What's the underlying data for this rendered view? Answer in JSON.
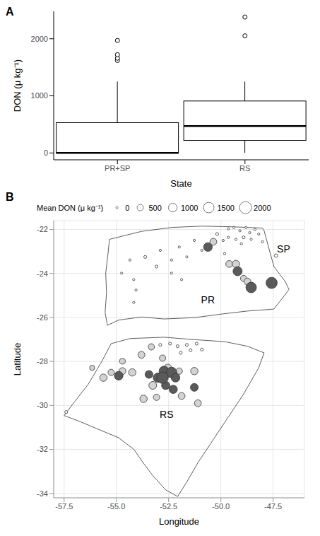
{
  "chart_data": [
    {
      "type": "box",
      "title": "A",
      "x_label": "State",
      "y_label": "DON (μ kg⁻¹)",
      "categories": [
        "PR+SP",
        "RS"
      ],
      "whisker_low": [
        0,
        0
      ],
      "q1": [
        0,
        220
      ],
      "median": [
        0,
        470
      ],
      "q3": [
        530,
        910
      ],
      "whisker_high": [
        1250,
        1250
      ],
      "outliers": [
        [
          1620,
          1660,
          1720,
          1970
        ],
        [
          2050,
          2380
        ]
      ],
      "ylim": [
        -120,
        2480
      ],
      "yticks": [
        0,
        1000,
        2000
      ]
    },
    {
      "type": "scatter",
      "title": "B",
      "x_label": "Longitude",
      "y_label": "Latitude",
      "x": [
        -49.64,
        -49.38,
        -49.09,
        -48.8,
        -48.62,
        -48.37,
        -48.19,
        -48.91,
        -49.28,
        -48.55,
        -48.01,
        -49.64,
        -50.18,
        -49.89,
        -49.02,
        -51.27,
        -51.99,
        -52.9,
        -53.62,
        -54.35,
        -54.75,
        -54.17,
        -53.08,
        -52.36,
        -51.63,
        -50.91,
        -50.62,
        -50.36,
        -49.82,
        -49.6,
        -49.28,
        -49.2,
        -48.91,
        -48.73,
        -48.55,
        -47.57,
        -47.36,
        -54.06,
        -54.17,
        -52.36,
        -51.88,
        -57.4,
        -52.9,
        -52.43,
        -52.07,
        -51.63,
        -51.16,
        -51.45,
        -51.92,
        -50.91,
        -53.8,
        -54.71,
        -53.33,
        -52.79,
        -54.24,
        -54.71,
        -55.25,
        -56.16,
        -55.62,
        -52.54,
        -51.99,
        -51.27,
        -53.26,
        -51.88,
        -53.08,
        -53.7,
        -51.1,
        -54.89,
        -53.44,
        -53.01,
        -52.72,
        -52.36,
        -52.17,
        -52.64,
        -52.79,
        -51.27,
        -52.28
      ],
      "y": [
        -21.97,
        -21.91,
        -22.06,
        -21.91,
        -22.15,
        -22.0,
        -22.21,
        -22.36,
        -22.45,
        -22.45,
        -22.56,
        -22.36,
        -22.21,
        -22.5,
        -22.65,
        -22.5,
        -22.8,
        -22.95,
        -23.25,
        -23.39,
        -23.99,
        -24.28,
        -23.69,
        -23.39,
        -23.25,
        -22.95,
        -22.8,
        -22.56,
        -23.1,
        -23.57,
        -23.57,
        -23.9,
        -24.23,
        -24.37,
        -24.64,
        -24.43,
        -23.19,
        -24.76,
        -25.32,
        -23.99,
        -24.28,
        -30.3,
        -27.25,
        -27.19,
        -27.31,
        -27.25,
        -27.19,
        -27.49,
        -27.61,
        -27.46,
        -27.7,
        -27.99,
        -27.34,
        -27.85,
        -28.5,
        -28.44,
        -28.5,
        -28.29,
        -28.74,
        -28.29,
        -28.44,
        -28.44,
        -29.09,
        -29.57,
        -29.63,
        -29.7,
        -29.9,
        -28.65,
        -28.59,
        -28.74,
        -28.44,
        -28.5,
        -28.74,
        -29.09,
        -28.74,
        -29.18,
        -29.27
      ],
      "sizes": [
        0,
        0,
        0,
        0,
        0,
        0,
        0,
        50,
        0,
        0,
        0,
        0,
        50,
        0,
        0,
        0,
        0,
        0,
        50,
        0,
        0,
        0,
        50,
        0,
        0,
        0,
        1000,
        600,
        0,
        600,
        700,
        1100,
        500,
        600,
        1500,
        1700,
        100,
        0,
        0,
        0,
        0,
        50,
        50,
        50,
        50,
        50,
        50,
        50,
        50,
        50,
        600,
        400,
        500,
        500,
        700,
        600,
        500,
        300,
        700,
        700,
        500,
        700,
        800,
        600,
        500,
        700,
        600,
        1000,
        800,
        1200,
        1300,
        1500,
        1000,
        900,
        1800,
        800,
        900
      ],
      "colors": [
        "#ffffff",
        "#ffffff",
        "#ffffff",
        "#ffffff",
        "#ffffff",
        "#ffffff",
        "#ffffff",
        "#ffffff",
        "#ffffff",
        "#ffffff",
        "#ffffff",
        "#ffffff",
        "#ffffff",
        "#ffffff",
        "#ffffff",
        "#ffffff",
        "#ffffff",
        "#ffffff",
        "#ffffff",
        "#ffffff",
        "#ffffff",
        "#ffffff",
        "#ffffff",
        "#ffffff",
        "#ffffff",
        "#ffffff",
        "#5a5a5a",
        "#d3d3d3",
        "#ffffff",
        "#d3d3d3",
        "#d3d3d3",
        "#5a5a5a",
        "#d3d3d3",
        "#d3d3d3",
        "#5a5a5a",
        "#5a5a5a",
        "#ffffff",
        "#ffffff",
        "#ffffff",
        "#ffffff",
        "#ffffff",
        "#ffffff",
        "#ffffff",
        "#ffffff",
        "#ffffff",
        "#ffffff",
        "#ffffff",
        "#ffffff",
        "#ffffff",
        "#ffffff",
        "#d3d3d3",
        "#d3d3d3",
        "#d3d3d3",
        "#d3d3d3",
        "#d3d3d3",
        "#d3d3d3",
        "#d3d3d3",
        "#d3d3d3",
        "#d3d3d3",
        "#d3d3d3",
        "#d3d3d3",
        "#d3d3d3",
        "#d3d3d3",
        "#d3d3d3",
        "#d3d3d3",
        "#d3d3d3",
        "#d3d3d3",
        "#5a5a5a",
        "#5a5a5a",
        "#5a5a5a",
        "#5a5a5a",
        "#5a5a5a",
        "#5a5a5a",
        "#5a5a5a",
        "#5a5a5a",
        "#5a5a5a",
        "#5a5a5a"
      ],
      "size_legend": {
        "title": "Mean DON (μ kg⁻¹)",
        "values": [
          0,
          500,
          1000,
          1500,
          2000
        ]
      },
      "outlines": [
        {
          "x": [
            -55.33,
            -53.8,
            -52.35,
            -50.91,
            -49.46,
            -48.01,
            -47.93,
            -47.72,
            -47.46,
            -46.92,
            -46.74,
            -47.1,
            -47.46,
            -48.73,
            -49.82,
            -51.27,
            -52.72,
            -53.8,
            -54.89,
            -55.43,
            -55.54,
            -55.47,
            -55.51,
            -55.4
          ],
          "y": [
            -22.45,
            -22.09,
            -21.91,
            -21.85,
            -21.88,
            -21.94,
            -22.06,
            -22.8,
            -23.69,
            -24.37,
            -24.73,
            -25.18,
            -25.62,
            -25.71,
            -25.83,
            -26.01,
            -26.07,
            -25.98,
            -26.12,
            -26.36,
            -25.77,
            -24.88,
            -23.99,
            -23.1
          ]
        },
        {
          "x": [
            -55.25,
            -54.35,
            -52.72,
            -51.27,
            -49.82,
            -48.73,
            -47.93,
            -48.19,
            -48.91,
            -49.64,
            -50.36,
            -51.09,
            -51.63,
            -52.07,
            -52.64,
            -53.26,
            -53.73,
            -54.17,
            -54.89,
            -55.8,
            -56.7,
            -57.5,
            -57.07,
            -56.34,
            -55.69
          ],
          "y": [
            -27.19,
            -26.96,
            -26.9,
            -27.01,
            -27.1,
            -27.31,
            -27.61,
            -28.29,
            -29.48,
            -30.52,
            -31.55,
            -32.59,
            -33.48,
            -34.14,
            -33.84,
            -33.19,
            -32.59,
            -31.99,
            -31.47,
            -31.11,
            -30.75,
            -30.46,
            -29.92,
            -29.03,
            -27.99
          ]
        }
      ],
      "annotations": [
        {
          "text": "PR",
          "x": -50.62,
          "y": -25.2
        },
        {
          "text": "SP",
          "x": -47.0,
          "y": -22.9
        },
        {
          "text": "RS",
          "x": -52.6,
          "y": -30.4
        }
      ],
      "xlim": [
        -58,
        -46
      ],
      "ylim": [
        -34.2,
        -21.6
      ],
      "xticks": [
        -57.5,
        {
          "value": -55,
          "label": "-55.0"
        },
        -52.5,
        {
          "value": -50,
          "label": "-50.0"
        },
        -47.5
      ],
      "yticks": [
        -34,
        -32,
        -30,
        -28,
        -26,
        -24,
        -22
      ],
      "grid": true
    }
  ]
}
